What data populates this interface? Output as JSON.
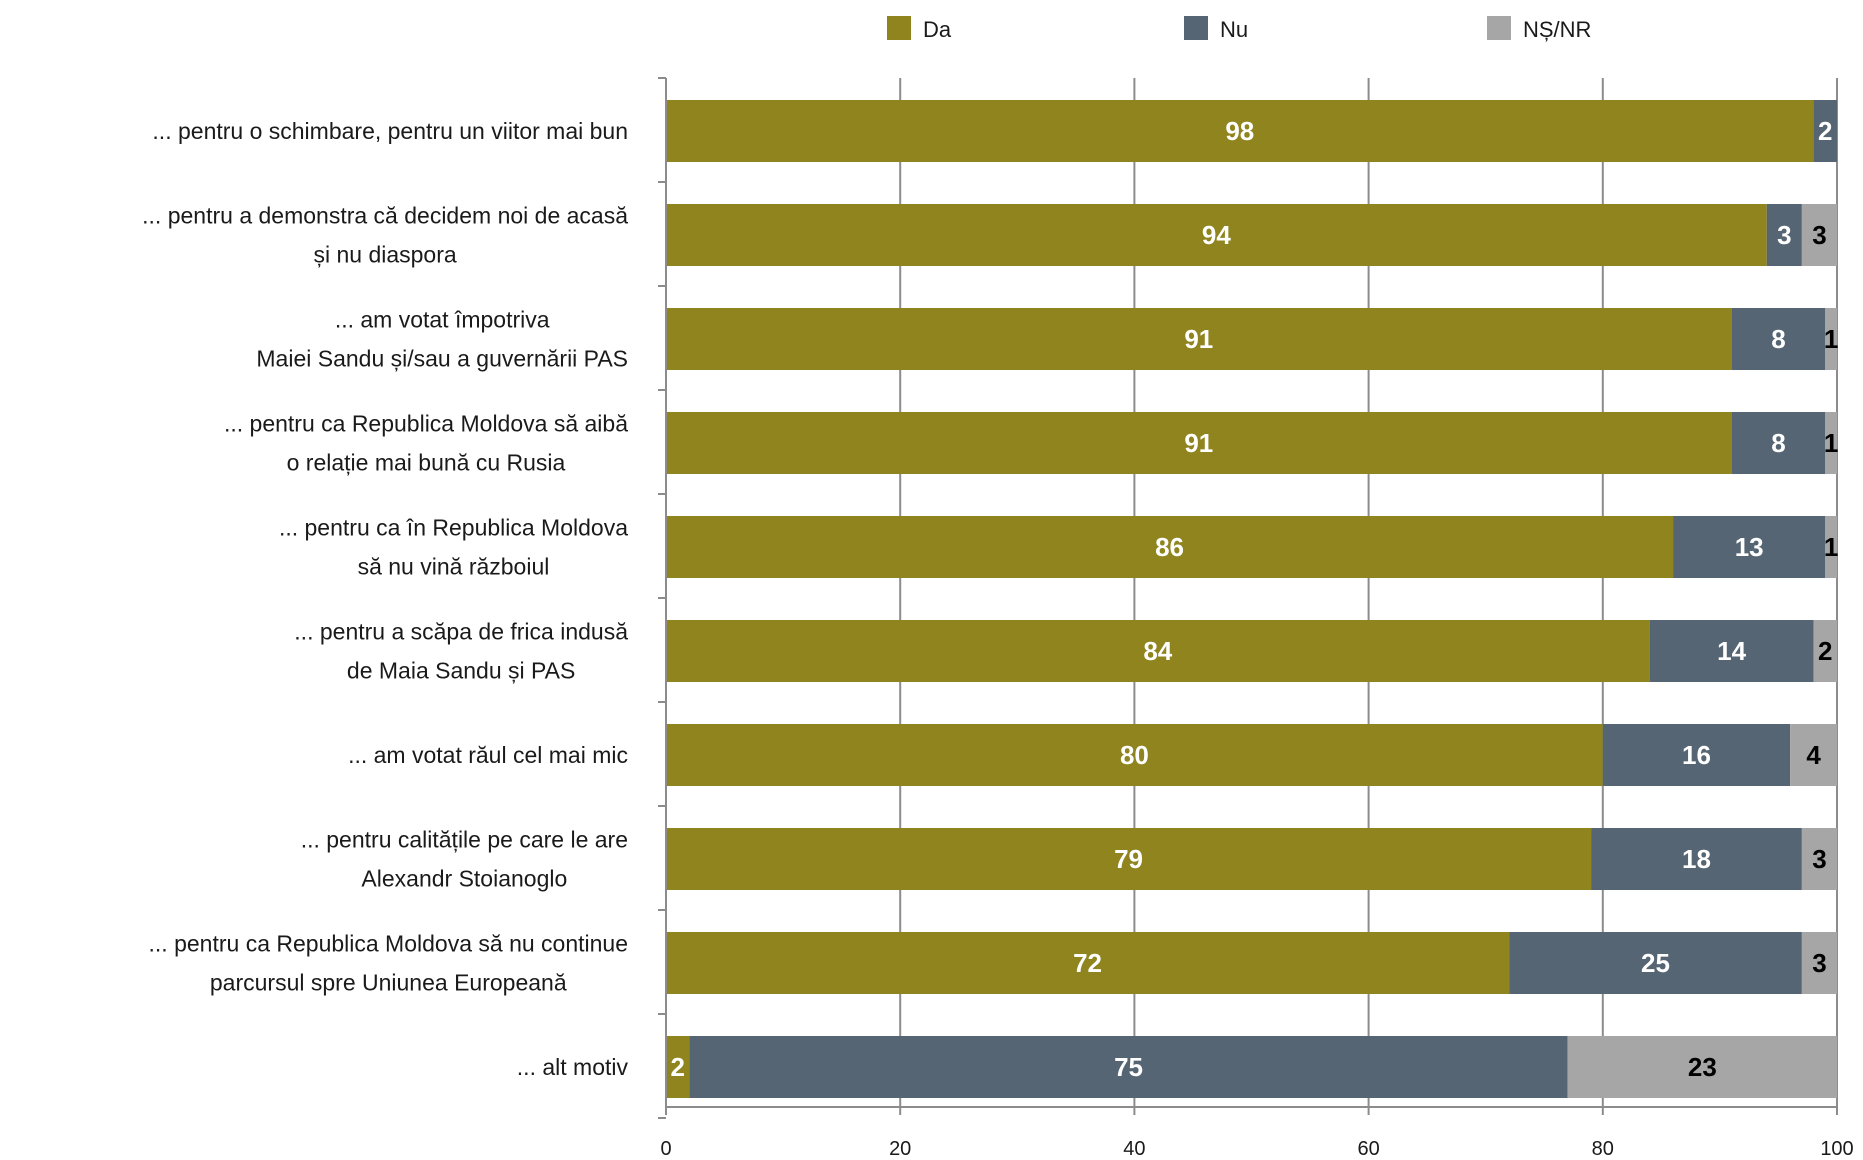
{
  "chart_data": {
    "type": "bar",
    "orientation": "horizontal",
    "stacked": true,
    "categories": [
      [
        "... pentru o schimbare, pentru un viitor mai bun"
      ],
      [
        "... pentru a demonstra că decidem noi de acasă",
        "și nu diaspora"
      ],
      [
        "... am votat împotriva",
        "Maiei Sandu și/sau a guvernării PAS"
      ],
      [
        "... pentru ca Republica Moldova să aibă",
        "o relație mai bună cu Rusia"
      ],
      [
        "... pentru ca în Republica Moldova",
        "să nu vină războiul"
      ],
      [
        "... pentru a scăpa de frica indusă",
        "de Maia Sandu și PAS"
      ],
      [
        "... am votat răul cel mai mic"
      ],
      [
        "... pentru calitățile pe care le are",
        "Alexandr Stoianoglo"
      ],
      [
        "... pentru ca Republica Moldova să nu continue",
        "parcursul spre Uniunea Europeană"
      ],
      [
        "... alt motiv"
      ]
    ],
    "series": [
      {
        "name": "Da",
        "color": "#8f841e",
        "label_color": "#ffffff",
        "values": [
          98,
          94,
          91,
          91,
          86,
          84,
          80,
          79,
          72,
          2
        ]
      },
      {
        "name": "Nu",
        "color": "#566573",
        "label_color": "#ffffff",
        "values": [
          2,
          3,
          8,
          8,
          13,
          14,
          16,
          18,
          25,
          75
        ]
      },
      {
        "name": "NȘ/NR",
        "color": "#a6a6a6",
        "label_color": "#000000",
        "values": [
          0,
          3,
          1,
          1,
          1,
          2,
          4,
          3,
          3,
          23
        ]
      }
    ],
    "xlim": [
      0,
      100
    ],
    "xticks": [
      0,
      20,
      40,
      60,
      80,
      100
    ],
    "grid": true,
    "legend_position": "top",
    "title": "",
    "xlabel": "",
    "ylabel": ""
  }
}
